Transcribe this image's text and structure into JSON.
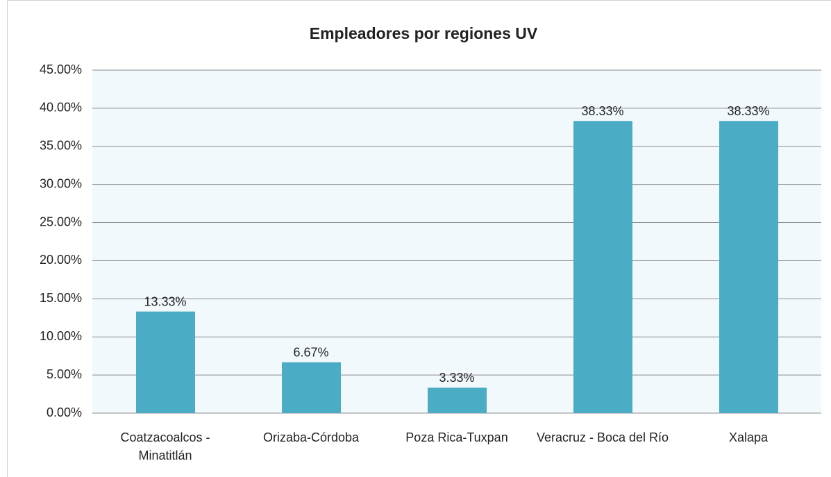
{
  "chart_data": {
    "type": "bar",
    "title": "Empleadores por regiones UV",
    "categories": [
      "Coatzacoalcos - Minatitlán",
      "Orizaba-Córdoba",
      "Poza Rica-Tuxpan",
      "Veracruz - Boca del Río",
      "Xalapa"
    ],
    "values": [
      13.33,
      6.67,
      3.33,
      38.33,
      38.33
    ],
    "value_labels": [
      "13.33%",
      "6.67%",
      "3.33%",
      "38.33%",
      "38.33%"
    ],
    "color": "#4bacc6",
    "ylim": [
      0,
      45
    ],
    "yticks": [
      {
        "value": 0,
        "label": "0.00%"
      },
      {
        "value": 5,
        "label": "5.00%"
      },
      {
        "value": 10,
        "label": "10.00%"
      },
      {
        "value": 15,
        "label": "15.00%"
      },
      {
        "value": 20,
        "label": "20.00%"
      },
      {
        "value": 25,
        "label": "25.00%"
      },
      {
        "value": 30,
        "label": "30.00%"
      },
      {
        "value": 35,
        "label": "35.00%"
      },
      {
        "value": 40,
        "label": "40.00%"
      },
      {
        "value": 45,
        "label": "45.00%"
      }
    ],
    "grid": true
  }
}
